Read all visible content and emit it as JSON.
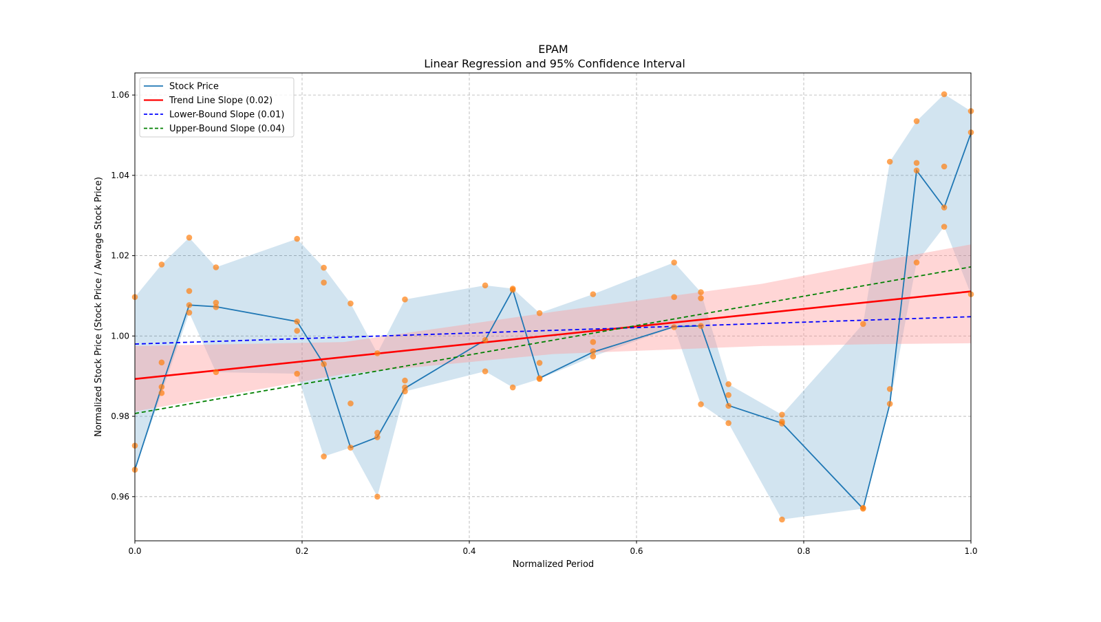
{
  "chart_data": {
    "type": "line",
    "title": "EPAM",
    "subtitle": "Linear Regression and 95% Confidence Interval",
    "xlabel": "Normalized Period",
    "ylabel": "Normalized Stock Price (Stock Price / Average Stock Price)",
    "xlim": [
      0,
      1
    ],
    "ylim": [
      0.949,
      1.0655
    ],
    "xticks": [
      0,
      0.2,
      0.4,
      0.6,
      0.8,
      1.0
    ],
    "xtick_labels": [
      "0.0",
      "0.2",
      "0.4",
      "0.6",
      "0.8",
      "1.0"
    ],
    "yticks": [
      0.96,
      0.98,
      1.0,
      1.02,
      1.04,
      1.06
    ],
    "ytick_labels": [
      "0.96",
      "0.98",
      "1.00",
      "1.02",
      "1.04",
      "1.06"
    ],
    "grid": true,
    "legend_position": "top-left",
    "legend": [
      {
        "label": "Stock Price",
        "color": "#1f77b4",
        "style": "solid"
      },
      {
        "label": "Trend Line Slope (0.02)",
        "color": "#ff0000",
        "style": "solid"
      },
      {
        "label": "Lower-Bound Slope (0.01)",
        "color": "#0000ff",
        "style": "dashed"
      },
      {
        "label": "Upper-Bound Slope (0.04)",
        "color": "#008000",
        "style": "dashed"
      }
    ],
    "stock_price": {
      "x": [
        0,
        0.032,
        0.065,
        0.097,
        0.194,
        0.226,
        0.258,
        0.29,
        0.323,
        0.419,
        0.452,
        0.484,
        0.548,
        0.645,
        0.677,
        0.71,
        0.774,
        0.871,
        0.903,
        0.935,
        0.968,
        1.0
      ],
      "y": [
        0.9667,
        0.9873,
        1.0077,
        1.0073,
        1.0036,
        0.993,
        0.9722,
        0.9748,
        0.987,
        0.999,
        1.0115,
        0.9895,
        0.996,
        1.0023,
        1.0025,
        0.9827,
        0.9783,
        0.957,
        0.9831,
        1.0412,
        1.032,
        1.0505
      ]
    },
    "scatter": [
      {
        "x": 0,
        "y": [
          1.0097,
          0.9727,
          0.9667
        ]
      },
      {
        "x": 0.032,
        "y": [
          1.0178,
          0.9934,
          0.9873,
          0.9858
        ]
      },
      {
        "x": 0.065,
        "y": [
          1.0245,
          1.0112,
          1.0077,
          1.0058
        ]
      },
      {
        "x": 0.097,
        "y": [
          1.0171,
          1.0083,
          1.0072,
          0.991
        ]
      },
      {
        "x": 0.194,
        "y": [
          1.0242,
          1.0036,
          1.0013,
          0.9906
        ]
      },
      {
        "x": 0.226,
        "y": [
          1.017,
          1.0133,
          0.993,
          0.97
        ]
      },
      {
        "x": 0.258,
        "y": [
          1.0081,
          0.9832,
          0.9722
        ]
      },
      {
        "x": 0.29,
        "y": [
          0.9957,
          0.9759,
          0.9748,
          0.96
        ]
      },
      {
        "x": 0.323,
        "y": [
          1.0091,
          0.9889,
          0.9872,
          0.9862
        ]
      },
      {
        "x": 0.419,
        "y": [
          1.0126,
          0.999,
          0.9912
        ]
      },
      {
        "x": 0.452,
        "y": [
          1.0118,
          1.0115,
          0.9872
        ]
      },
      {
        "x": 0.484,
        "y": [
          1.0057,
          0.9933,
          0.9895,
          0.9893
        ]
      },
      {
        "x": 0.548,
        "y": [
          1.0104,
          0.9985,
          0.9962,
          0.9949
        ]
      },
      {
        "x": 0.645,
        "y": [
          1.0183,
          1.0097,
          1.0022
        ]
      },
      {
        "x": 0.677,
        "y": [
          1.0109,
          1.0094,
          1.0025,
          0.983
        ]
      },
      {
        "x": 0.71,
        "y": [
          0.988,
          0.9853,
          0.9826,
          0.9783
        ]
      },
      {
        "x": 0.774,
        "y": [
          0.9804,
          0.9787,
          0.9782,
          0.9543
        ]
      },
      {
        "x": 0.871,
        "y": [
          1.003,
          0.9572,
          0.957
        ]
      },
      {
        "x": 0.903,
        "y": [
          1.0434,
          0.9868,
          0.9831
        ]
      },
      {
        "x": 0.935,
        "y": [
          1.0535,
          1.0431,
          1.0412,
          1.0183
        ]
      },
      {
        "x": 0.968,
        "y": [
          1.0602,
          1.0422,
          1.032,
          1.0272
        ]
      },
      {
        "x": 1.0,
        "y": [
          1.056,
          1.0507,
          1.0104
        ]
      }
    ],
    "trend_line": {
      "x": [
        0,
        1
      ],
      "y": [
        0.9893,
        1.0111
      ]
    },
    "lower_bound_line": {
      "x": [
        0,
        1
      ],
      "y": [
        0.998,
        1.0048
      ]
    },
    "upper_bound_line": {
      "x": [
        0,
        1
      ],
      "y": [
        0.9807,
        1.0172
      ]
    },
    "confidence_band": {
      "x": [
        0,
        0.25,
        0.5,
        0.75,
        0.9,
        1.0
      ],
      "lower": [
        0.9812,
        0.9905,
        0.9955,
        0.9975,
        0.998,
        0.9982
      ],
      "upper": [
        0.9975,
        0.9985,
        1.006,
        1.013,
        1.019,
        1.0228
      ]
    },
    "colors": {
      "price_band": "#1f77b4",
      "ci_band": "#ff9999",
      "scatter": "#ff7f0e"
    }
  }
}
